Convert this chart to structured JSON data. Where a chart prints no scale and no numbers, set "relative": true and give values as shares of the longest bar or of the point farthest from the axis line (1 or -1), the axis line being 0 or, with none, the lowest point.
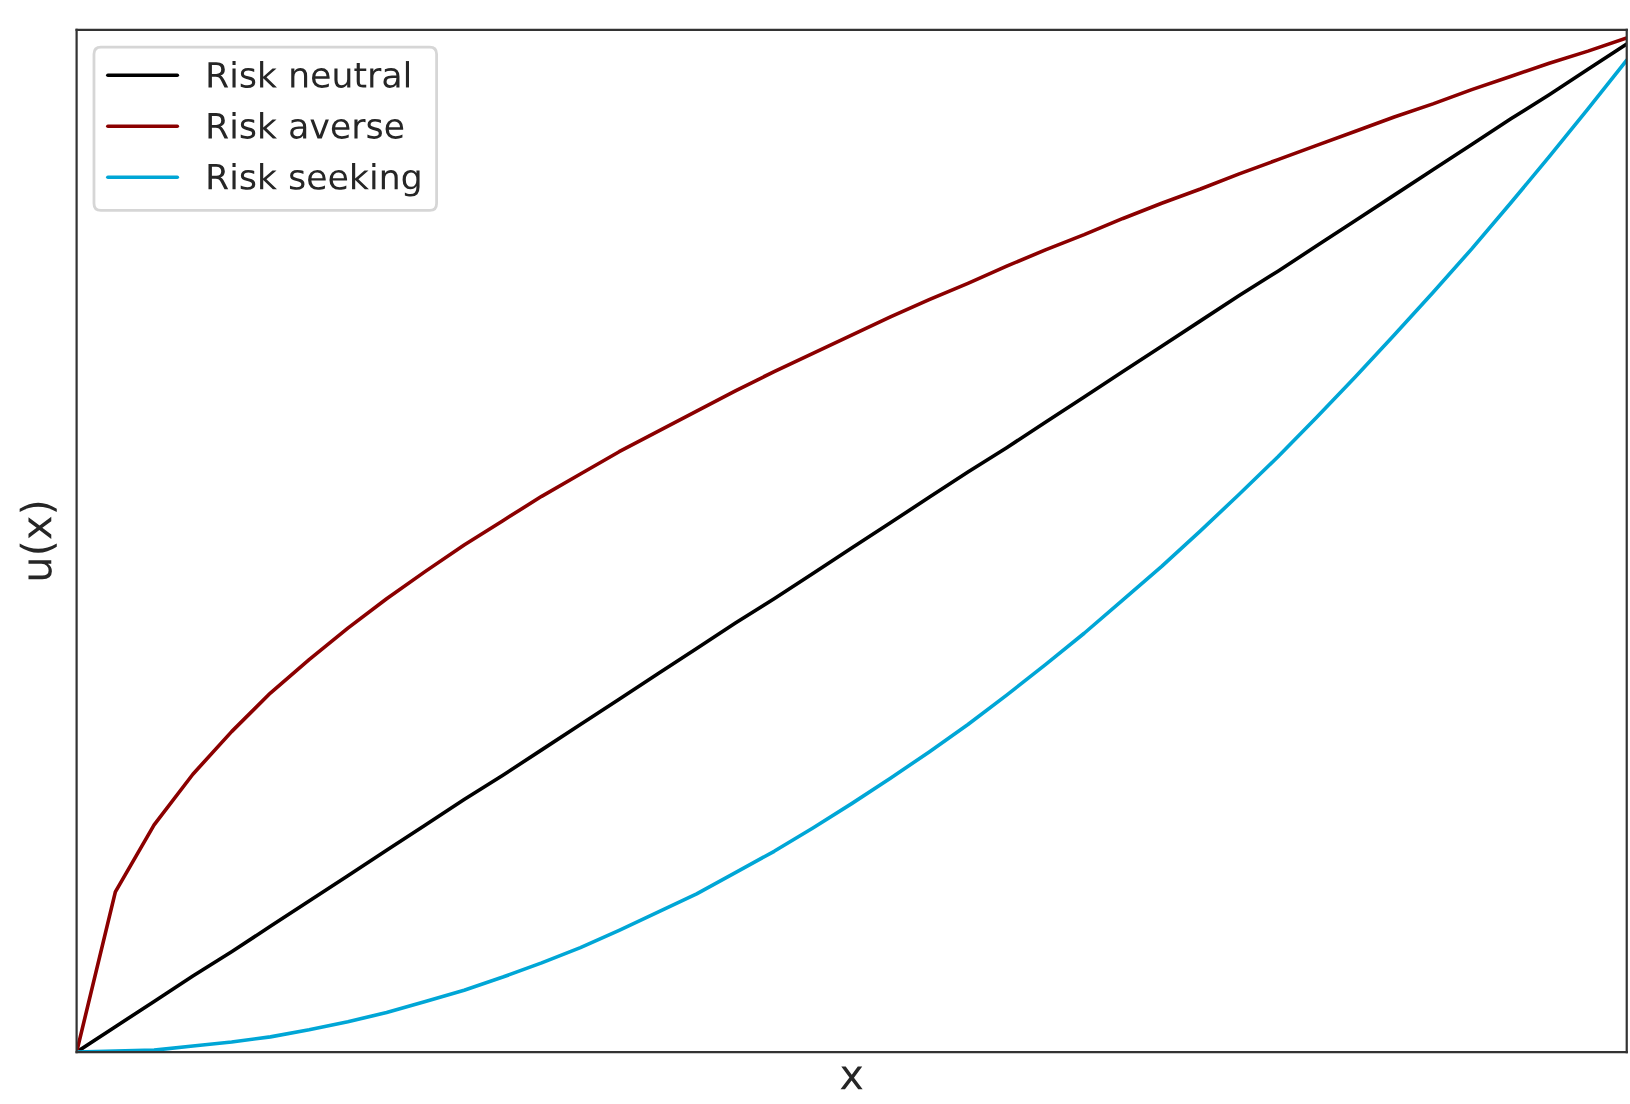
{
  "chart_data": {
    "type": "line",
    "relative": true,
    "xlabel": "x",
    "ylabel": "u(x)",
    "legend": "top left",
    "tick_labels": false,
    "categories": [
      null,
      null,
      null,
      null,
      null,
      null,
      null,
      null,
      null,
      null,
      null,
      null,
      null,
      null,
      null,
      null,
      null,
      null,
      null,
      null,
      null,
      null,
      null,
      null,
      null,
      null,
      null,
      null,
      null,
      null,
      null,
      null,
      null,
      null,
      null,
      null,
      null,
      null,
      null,
      null,
      null
    ],
    "series": [
      {
        "name": "Risk neutral",
        "color": "#000000",
        "values": [
          0,
          0.025,
          0.05,
          0.075,
          0.099,
          0.124,
          0.149,
          0.174,
          0.199,
          0.224,
          0.249,
          0.273,
          0.298,
          0.323,
          0.348,
          0.373,
          0.398,
          0.423,
          0.447,
          0.472,
          0.497,
          0.522,
          0.547,
          0.572,
          0.596,
          0.621,
          0.646,
          0.671,
          0.696,
          0.721,
          0.746,
          0.77,
          0.795,
          0.82,
          0.845,
          0.87,
          0.895,
          0.92,
          0.944,
          0.969,
          0.994
        ]
      },
      {
        "name": "Risk averse",
        "color": "#8b0000",
        "values": [
          0,
          0.158,
          0.224,
          0.274,
          0.316,
          0.354,
          0.387,
          0.418,
          0.447,
          0.474,
          0.5,
          0.524,
          0.548,
          0.57,
          0.592,
          0.612,
          0.632,
          0.652,
          0.671,
          0.689,
          0.707,
          0.725,
          0.742,
          0.758,
          0.775,
          0.791,
          0.806,
          0.822,
          0.837,
          0.851,
          0.866,
          0.88,
          0.894,
          0.908,
          0.922,
          0.935,
          0.949,
          0.962,
          0.975,
          0.987,
          1
        ]
      },
      {
        "name": "Risk seeking",
        "color": "#00a6d6",
        "values": [
          0,
          0.001,
          0.002,
          0.006,
          0.01,
          0.015,
          0.022,
          0.03,
          0.039,
          0.05,
          0.061,
          0.074,
          0.088,
          0.103,
          0.12,
          0.138,
          0.156,
          0.177,
          0.198,
          0.221,
          0.245,
          0.27,
          0.296,
          0.323,
          0.352,
          0.382,
          0.413,
          0.446,
          0.479,
          0.514,
          0.55,
          0.587,
          0.626,
          0.666,
          0.707,
          0.749,
          0.792,
          0.837,
          0.883,
          0.93,
          0.978
        ]
      }
    ]
  }
}
